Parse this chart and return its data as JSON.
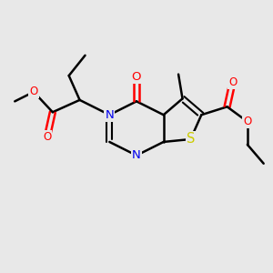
{
  "background_color": "#e8e8e8",
  "bond_color": "#000000",
  "bond_width": 1.8,
  "atom_colors": {
    "N": "#0000ee",
    "O": "#ff0000",
    "S": "#cccc00",
    "C": "#000000"
  },
  "font_size": 8.5,
  "fig_width": 3.0,
  "fig_height": 3.0
}
